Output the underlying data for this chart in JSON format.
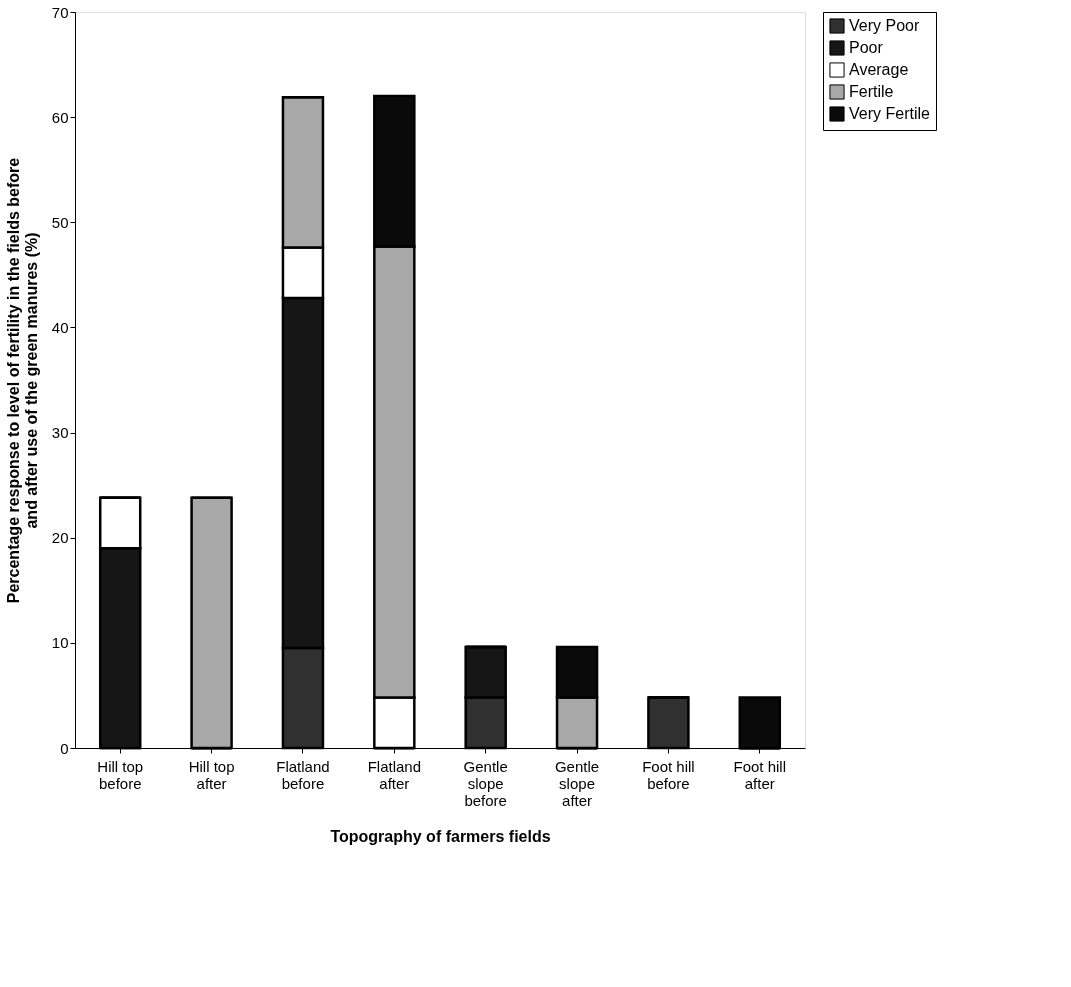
{
  "chart_data": {
    "type": "bar",
    "stacked": true,
    "xlabel": "Topography of farmers fields",
    "ylabel": "Percentage response to level of fertility in the fields before and after use of the green manures (%)",
    "categories": [
      "Hill top before",
      "Hill top after",
      "Flatland before",
      "Flatland after",
      "Gentle slope before",
      "Gentle slope after",
      "Foot hill before",
      "Foot hill after"
    ],
    "series": [
      {
        "name": "Very Poor",
        "color": "#303030",
        "values": [
          0,
          0,
          9.5,
          0,
          4.8,
          0,
          4.8,
          0
        ]
      },
      {
        "name": "Poor",
        "color": "#161616",
        "values": [
          19.0,
          0,
          33.3,
          0,
          4.8,
          0,
          0,
          0
        ]
      },
      {
        "name": "Average",
        "color": "#ffffff",
        "values": [
          4.8,
          0,
          4.8,
          4.8,
          0,
          0,
          0,
          0
        ]
      },
      {
        "name": "Fertile",
        "color": "#a8a8a8",
        "values": [
          0,
          23.8,
          14.3,
          42.9,
          0,
          4.8,
          0,
          0
        ]
      },
      {
        "name": "Very Fertile",
        "color": "#0a0a0a",
        "values": [
          0,
          0,
          0,
          14.3,
          0,
          4.8,
          0,
          4.8
        ]
      }
    ],
    "ylim": [
      0,
      70
    ],
    "yticks": [
      0,
      10,
      20,
      30,
      40,
      50,
      60,
      70
    ],
    "grid": false,
    "legend": "right"
  }
}
